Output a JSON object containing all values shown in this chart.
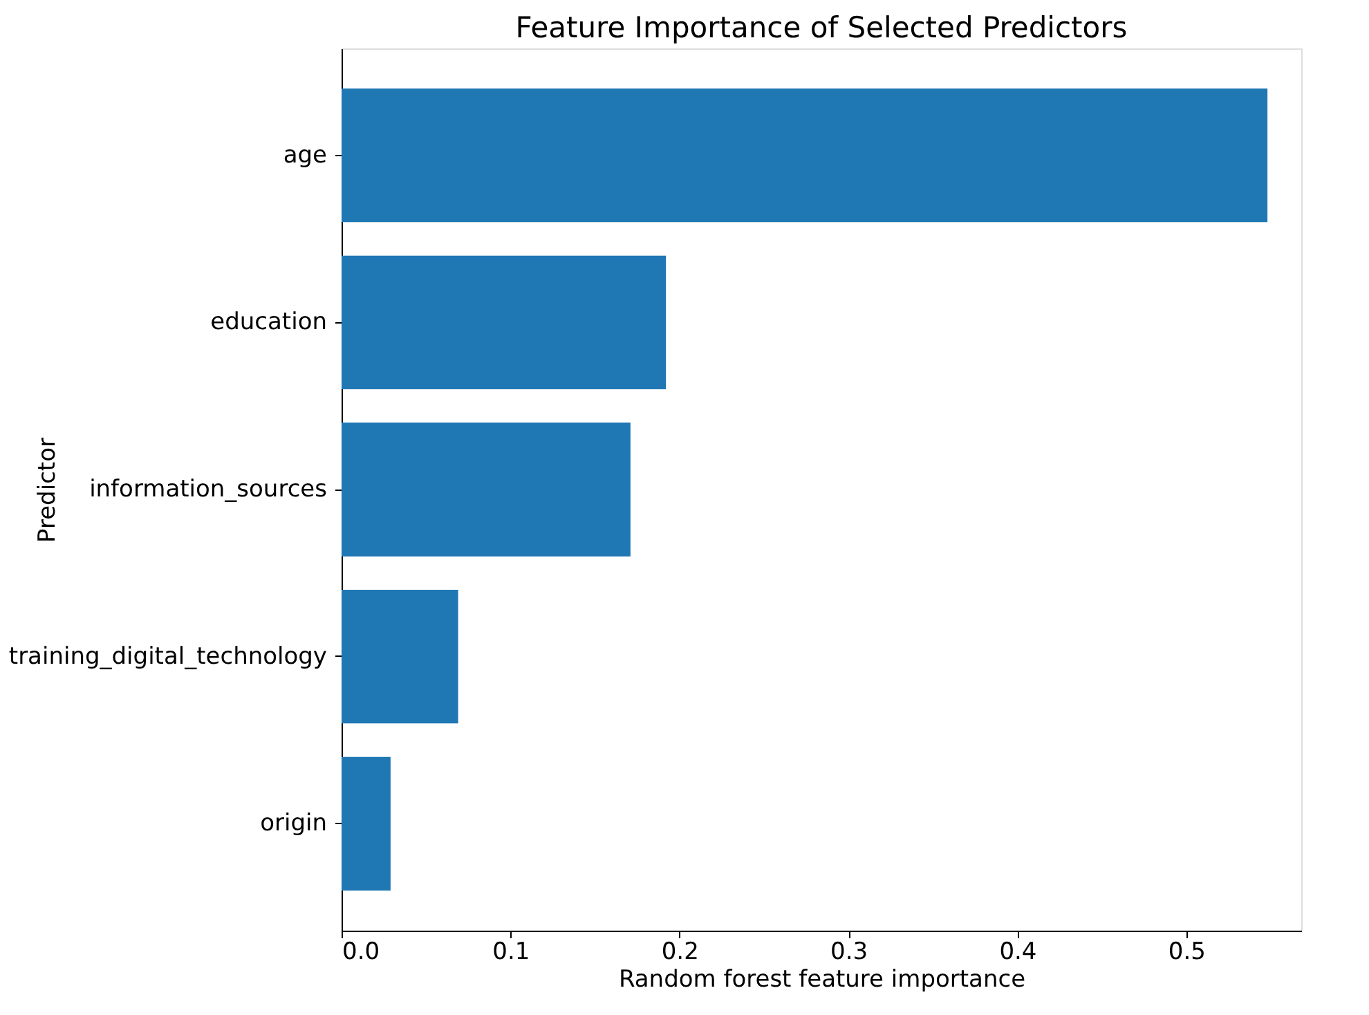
{
  "chart_data": {
    "type": "bar",
    "orientation": "horizontal",
    "title": "Feature Importance of Selected Predictors",
    "xlabel": "Random forest feature importance",
    "ylabel": "Predictor",
    "categories": [
      "age",
      "education",
      "information_sources",
      "training_digital_technology",
      "origin"
    ],
    "values": [
      0.548,
      0.192,
      0.171,
      0.069,
      0.029
    ],
    "color": "#1f77b4",
    "xlim": [
      0,
      0.568
    ],
    "xticks": [
      {
        "value": 0,
        "label": "0.0"
      },
      0.1,
      0.2,
      0.3,
      0.4,
      0.5
    ],
    "grid": false
  }
}
